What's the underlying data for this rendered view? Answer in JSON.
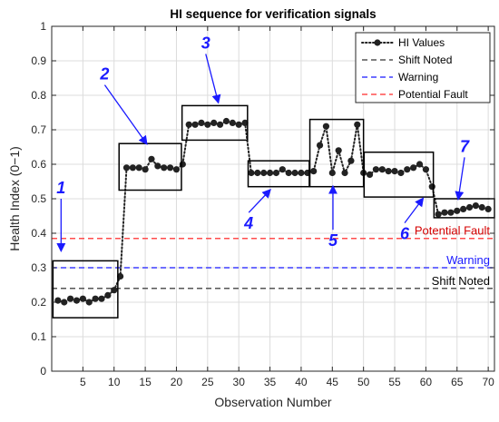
{
  "chart_data": {
    "type": "line",
    "title": "HI sequence for verification signals",
    "xlabel": "Observation Number",
    "ylabel": "Health Index (0−1)",
    "xlim": [
      0,
      71
    ],
    "ylim": [
      0,
      1
    ],
    "xticks": [
      5,
      10,
      15,
      20,
      25,
      30,
      35,
      40,
      45,
      50,
      55,
      60,
      65,
      70
    ],
    "yticks": [
      0,
      0.1,
      0.2,
      0.3,
      0.4,
      0.5,
      0.6,
      0.7,
      0.8,
      0.9,
      1
    ],
    "grid": true,
    "legend_position": "top-right",
    "series": [
      {
        "name": "HI Values",
        "color": "#222222",
        "style": "dotted-with-markers",
        "x": [
          1,
          2,
          3,
          4,
          5,
          6,
          7,
          8,
          9,
          10,
          11,
          12,
          13,
          14,
          15,
          16,
          17,
          18,
          19,
          20,
          21,
          22,
          23,
          24,
          25,
          26,
          27,
          28,
          29,
          30,
          31,
          32,
          33,
          34,
          35,
          36,
          37,
          38,
          39,
          40,
          41,
          42,
          43,
          44,
          45,
          46,
          47,
          48,
          49,
          50,
          51,
          52,
          53,
          54,
          55,
          56,
          57,
          58,
          59,
          60,
          61,
          62,
          63,
          64,
          65,
          66,
          67,
          68,
          69,
          70
        ],
        "values": [
          0.205,
          0.2,
          0.21,
          0.205,
          0.21,
          0.2,
          0.21,
          0.21,
          0.22,
          0.235,
          0.275,
          0.59,
          0.59,
          0.59,
          0.585,
          0.615,
          0.595,
          0.59,
          0.59,
          0.585,
          0.6,
          0.715,
          0.715,
          0.72,
          0.715,
          0.72,
          0.715,
          0.725,
          0.72,
          0.715,
          0.72,
          0.575,
          0.575,
          0.575,
          0.575,
          0.575,
          0.585,
          0.575,
          0.575,
          0.575,
          0.575,
          0.58,
          0.655,
          0.71,
          0.575,
          0.64,
          0.575,
          0.61,
          0.715,
          0.575,
          0.57,
          0.585,
          0.585,
          0.58,
          0.58,
          0.575,
          0.585,
          0.59,
          0.6,
          0.585,
          0.535,
          0.455,
          0.46,
          0.46,
          0.465,
          0.47,
          0.475,
          0.48,
          0.475,
          0.47
        ]
      },
      {
        "name": "Shift Noted",
        "color": "#555555",
        "style": "dashed",
        "y": 0.24
      },
      {
        "name": "Warning",
        "color": "#3f3fff",
        "style": "dashed",
        "y": 0.3
      },
      {
        "name": "Potential Fault",
        "color": "#ff4d4d",
        "style": "dashed",
        "y": 0.385
      }
    ],
    "threshold_labels": [
      {
        "text": "Potential Fault",
        "color": "#d40000",
        "y": 0.385
      },
      {
        "text": "Warning",
        "color": "#1a1aff",
        "y": 0.3
      },
      {
        "text": "Shift Noted",
        "color": "#000000",
        "y": 0.24
      }
    ],
    "regions": [
      {
        "label": "1",
        "x0": 0.2,
        "x1": 10.6,
        "y0": 0.155,
        "y1": 0.32,
        "arrow_from": [
          1.5,
          0.5
        ],
        "arrow_to": [
          1.5,
          0.35
        ]
      },
      {
        "label": "2",
        "x0": 10.8,
        "x1": 20.8,
        "y0": 0.525,
        "y1": 0.66,
        "arrow_from": [
          8.5,
          0.83
        ],
        "arrow_to": [
          15.2,
          0.66
        ]
      },
      {
        "label": "3",
        "x0": 20.9,
        "x1": 31.4,
        "y0": 0.67,
        "y1": 0.77,
        "arrow_from": [
          24.7,
          0.92
        ],
        "arrow_to": [
          26.7,
          0.78
        ]
      },
      {
        "label": "4",
        "x0": 31.5,
        "x1": 41.3,
        "y0": 0.535,
        "y1": 0.61,
        "arrow_from": [
          31.6,
          0.46
        ],
        "arrow_to": [
          35.0,
          0.525
        ]
      },
      {
        "label": "5",
        "x0": 41.4,
        "x1": 50.0,
        "y0": 0.535,
        "y1": 0.73,
        "arrow_from": [
          45.1,
          0.41
        ],
        "arrow_to": [
          45.1,
          0.535
        ]
      },
      {
        "label": "6",
        "x0": 50.1,
        "x1": 61.2,
        "y0": 0.505,
        "y1": 0.635,
        "arrow_from": [
          56.6,
          0.43
        ],
        "arrow_to": [
          59.5,
          0.5
        ]
      },
      {
        "label": "7",
        "x0": 61.3,
        "x1": 71.0,
        "y0": 0.445,
        "y1": 0.5,
        "arrow_from": [
          66.2,
          0.62
        ],
        "arrow_to": [
          65.2,
          0.5
        ]
      }
    ]
  }
}
